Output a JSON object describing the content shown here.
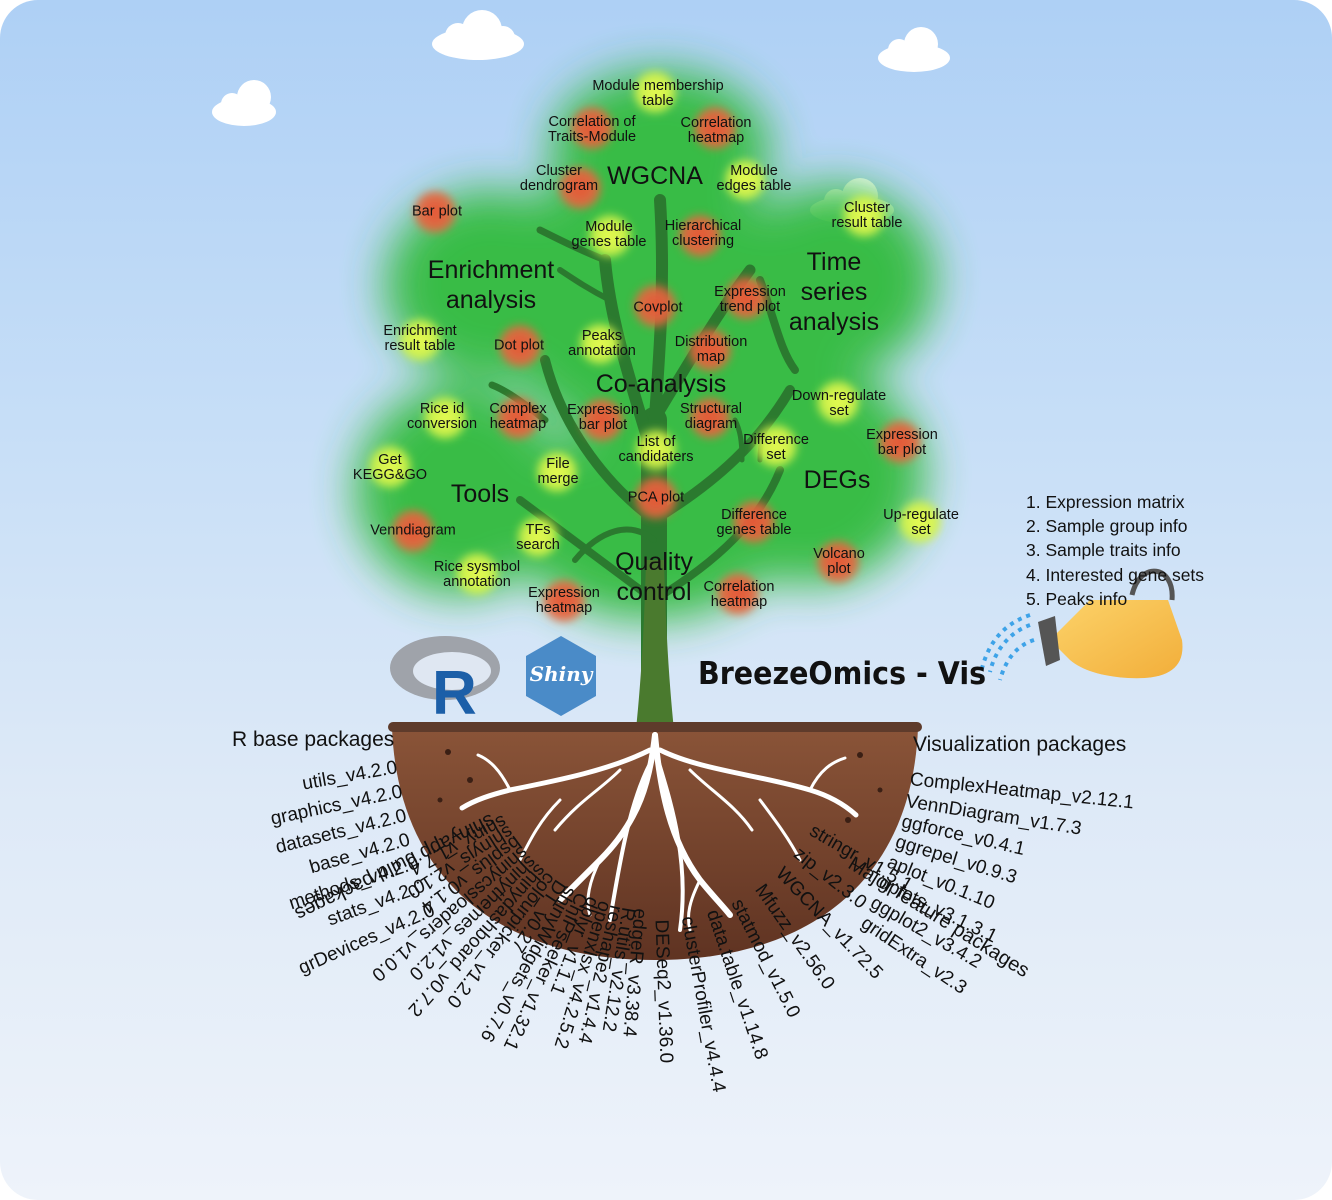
{
  "title": "BreezeOmics - Vis",
  "logos": {
    "r_logo": "R",
    "shiny_logo": "Shiny"
  },
  "inputs": [
    "1. Expression matrix",
    "2. Sample group info",
    "3. Sample traits info",
    "4. Interested gene sets",
    "5. Peaks info"
  ],
  "modules": {
    "wgcna": "WGCNA",
    "enrichment": "Enrichment\nanalysis",
    "time_series": "Time\nseries\nanalysis",
    "co_analysis": "Co-analysis",
    "degs": "DEGs",
    "tools": "Tools",
    "quality_control": "Quality\ncontrol"
  },
  "features": {
    "module_membership_table": "Module membership\ntable",
    "correlation_traits_module": "Correlation of\nTraits-Module",
    "correlation_heatmap_top": "Correlation\nheatmap",
    "cluster_dendrogram": "Cluster\ndendrogram",
    "module_edges_table": "Module\nedges table",
    "bar_plot": "Bar plot",
    "module_genes_table": "Module\ngenes table",
    "hierarchical_clustering": "Hierarchical\nclustering",
    "cluster_result_table": "Cluster\nresult table",
    "covplot": "Covplot",
    "expression_trend_plot": "Expression\ntrend plot",
    "enrichment_result_table": "Enrichment\nresult table",
    "dot_plot": "Dot plot",
    "peaks_annotation": "Peaks\nannotation",
    "distribution_map": "Distribution\nmap",
    "rice_id_conversion": "Rice id\nconversion",
    "complex_heatmap": "Complex\nheatmap",
    "expression_bar_plot_center": "Expression\nbar plot",
    "structural_diagram": "Structural\ndiagram",
    "down_regulate_set": "Down-regulate\nset",
    "list_of_candidaters": "List of\ncandidaters",
    "difference_set": "Difference\nset",
    "expression_bar_plot_right": "Expression\nbar plot",
    "get_kegg_go": "Get\nKEGG&GO",
    "file_merge": "File\nmerge",
    "pca_plot": "PCA plot",
    "difference_genes_table": "Difference\ngenes table",
    "up_regulate_set": "Up-regulate\nset",
    "venndiagram": "Venndiagram",
    "tfs_search": "TFs\nsearch",
    "volcano_plot": "Volcano\nplot",
    "rice_symbol_annotation": "Rice sysmbol\nannotation",
    "expression_heatmap": "Expression\nheatmap",
    "correlation_heatmap_bottom": "Correlation\nheatmap"
  },
  "packages": {
    "r_base": {
      "title": "R base packages",
      "items": [
        "utils_v4.2.0",
        "graphics_v4.2.0",
        "datasets_v4.2.0",
        "base_v4.2.0",
        "methods_v4.2.0",
        "stats_v4.2.0",
        "grDevices_v4.2.0"
      ]
    },
    "visualization": {
      "title": "Visualization packages",
      "items": [
        "ComplexHeatmap_v2.12.1",
        "VennDiagram_v1.7.3",
        "ggforce_v0.4.1",
        "ggrepel_v0.9.3",
        "aplot_v0.1.10",
        "gplots_v3.1.3.1",
        "ggplot2_v3.4.2",
        "gridExtra_v2.3"
      ]
    },
    "shinyapp_build": {
      "title": "shinyapp build packages",
      "items": [
        "shiny_v1.7.4",
        "shinyjs_v2.1.0",
        "bsplus_v0.1.4",
        "shinycssloaders_v1.0.0",
        "shinythemes_v1.2.0",
        "shinydashboard_v0.7.2",
        "colourpicker_v1.2.0",
        "DT_v0.27",
        "shinyWidgets_v0.7.6",
        "ChIPseeker_v1.32.1",
        "dplyr_v1.1.1",
        "openxlsx_v4.2.5.2",
        "reshape2_v1.4.4",
        "R.utils_v2.12.2",
        "edgeR_v3.38.4"
      ]
    },
    "major_feature": {
      "title": "Major feature packages",
      "items": [
        "DESeq2_v1.36.0",
        "clusterProfiler_v4.4.4",
        "data.table_v1.14.8",
        "statmod_v1.5.0",
        "Mfuzz_v2.56.0",
        "WGCNA_v1.72.5",
        "zip_v2.3.0",
        "stringr_v1.5.1"
      ]
    }
  },
  "colors": {
    "sky_top": "#aed0f5",
    "foliage": "#33bb3c",
    "red_dot": "#e35a3a",
    "yellow_dot": "#d8f24a",
    "soil": "#7a4630",
    "trunk": "#2f7a31",
    "can": "#fbc250"
  }
}
